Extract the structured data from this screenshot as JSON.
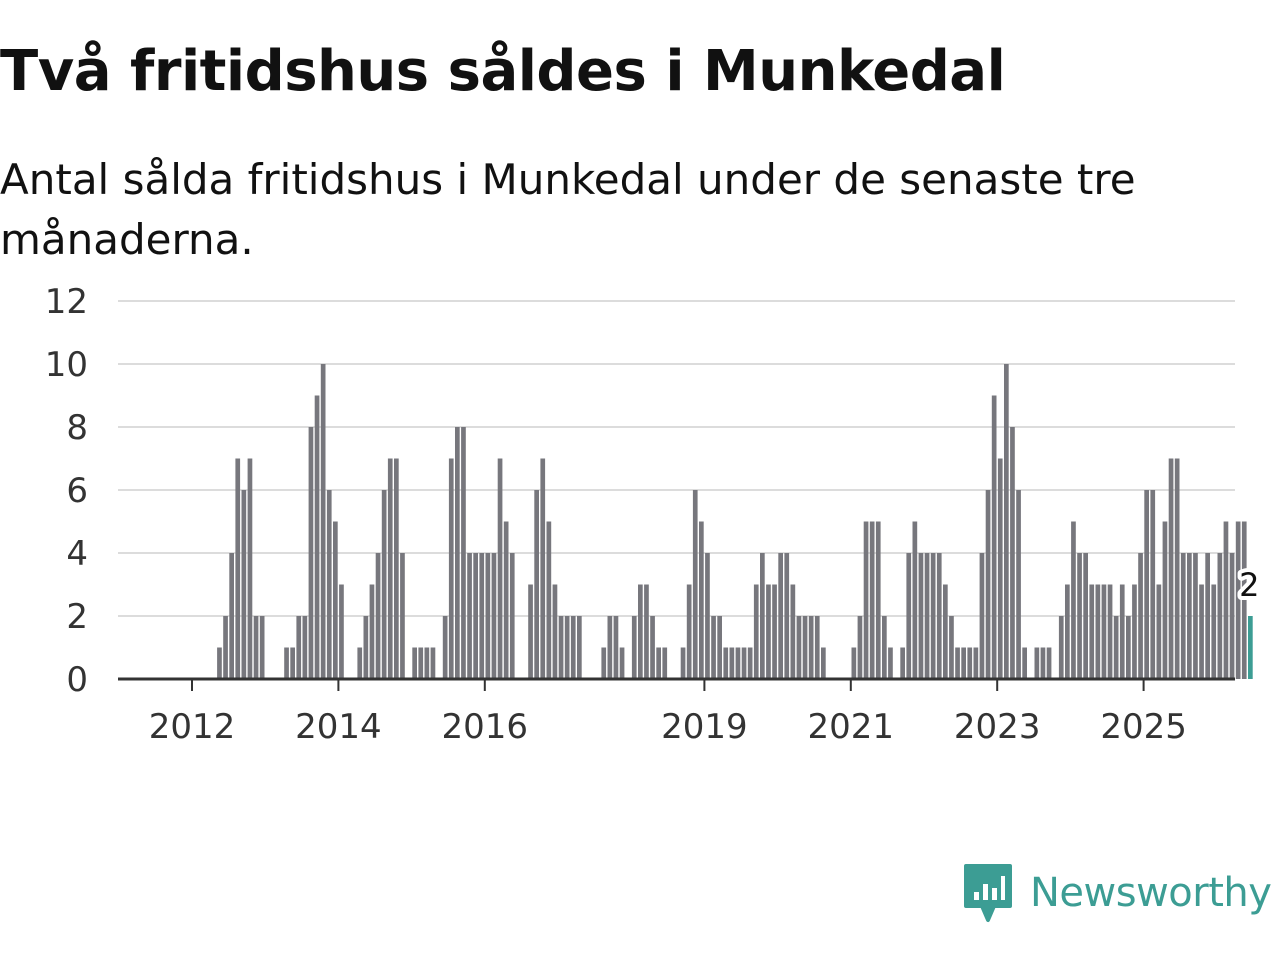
{
  "header": {
    "title": "Två fritidshus såldes i Munkedal",
    "subtitle": "Antal sålda fritidshus i Munkedal under de senaste tre månaderna."
  },
  "brand": {
    "name": "Newsworthy",
    "color": "#3c9d94"
  },
  "chart_data": {
    "type": "bar",
    "title": "Två fritidshus såldes i Munkedal",
    "subtitle": "Antal sålda fritidshus i Munkedal under de senaste tre månaderna.",
    "xlabel": "",
    "ylabel": "",
    "ylim": [
      0,
      12
    ],
    "yticks": [
      0,
      2,
      4,
      6,
      8,
      10,
      12
    ],
    "grid": true,
    "start_year": 2011,
    "start_month": 1,
    "x_tick_labels": [
      "2012",
      "2014",
      "2016",
      "2019",
      "2021",
      "2023",
      "2025"
    ],
    "bar_color": "#77777d",
    "highlight_color": "#3c9d94",
    "highlight_label": "2",
    "values": [
      0,
      0,
      0,
      0,
      0,
      0,
      0,
      0,
      0,
      0,
      0,
      0,
      0,
      0,
      0,
      0,
      1,
      2,
      4,
      7,
      6,
      7,
      2,
      2,
      0,
      0,
      0,
      1,
      1,
      2,
      2,
      8,
      9,
      10,
      6,
      5,
      3,
      0,
      0,
      1,
      2,
      3,
      4,
      6,
      7,
      7,
      4,
      0,
      1,
      1,
      1,
      1,
      0,
      2,
      7,
      8,
      8,
      4,
      4,
      4,
      4,
      4,
      7,
      5,
      4,
      0,
      0,
      3,
      6,
      7,
      5,
      3,
      2,
      2,
      2,
      2,
      0,
      0,
      0,
      1,
      2,
      2,
      1,
      0,
      2,
      3,
      3,
      2,
      1,
      1,
      0,
      0,
      1,
      3,
      6,
      5,
      4,
      2,
      2,
      1,
      1,
      1,
      1,
      1,
      3,
      4,
      3,
      3,
      4,
      4,
      3,
      2,
      2,
      2,
      2,
      1,
      0,
      0,
      0,
      0,
      1,
      2,
      5,
      5,
      5,
      2,
      1,
      0,
      1,
      4,
      5,
      4,
      4,
      4,
      4,
      3,
      2,
      1,
      1,
      1,
      1,
      4,
      6,
      9,
      7,
      10,
      8,
      6,
      1,
      0,
      1,
      1,
      1,
      0,
      2,
      3,
      5,
      4,
      4,
      3,
      3,
      3,
      3,
      2,
      3,
      2,
      3,
      4,
      6,
      6,
      3,
      5,
      7,
      7,
      4,
      4,
      4,
      3,
      4,
      3,
      4,
      5,
      4,
      5,
      5,
      2
    ]
  }
}
